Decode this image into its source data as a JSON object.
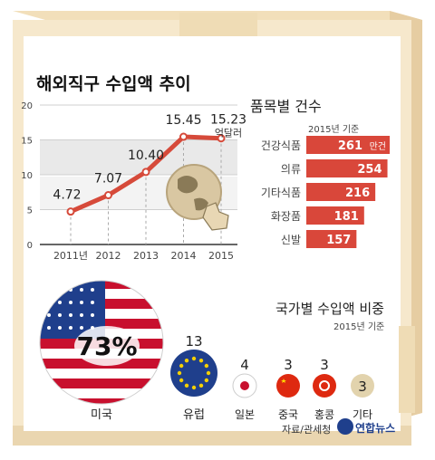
{
  "line_chart": {
    "title": "해외직구 수입액 추이",
    "unit_label": "억달러",
    "y_ticks": [
      "0",
      "5",
      "10",
      "15",
      "20"
    ],
    "x_labels": [
      "2011년",
      "2012",
      "2013",
      "2014",
      "2015"
    ],
    "value_labels": [
      "4.72",
      "7.07",
      "10.40",
      "15.45",
      "15.23"
    ]
  },
  "bar_chart": {
    "title": "품목별 건수",
    "note": "2015년 기준",
    "unit": "만건",
    "categories": [
      "건강식품",
      "의류",
      "기타식품",
      "화장품",
      "신발"
    ],
    "value_labels": [
      "261",
      "254",
      "216",
      "181",
      "157"
    ]
  },
  "share": {
    "title": "국가별 수입액 비중",
    "note": "2015년 기준",
    "items": [
      {
        "name": "미국",
        "value": "73%"
      },
      {
        "name": "유럽",
        "value": "13"
      },
      {
        "name": "일본",
        "value": "4"
      },
      {
        "name": "중국",
        "value": "3"
      },
      {
        "name": "홍콩",
        "value": "3"
      },
      {
        "name": "기타",
        "value": "3"
      }
    ]
  },
  "footer": {
    "source": "자료/관세청",
    "logo_text": "연합뉴스"
  },
  "chart_data": [
    {
      "type": "line",
      "title": "해외직구 수입액 추이",
      "ylabel": "억달러",
      "x": [
        "2011년",
        "2012",
        "2013",
        "2014",
        "2015"
      ],
      "values": [
        4.72,
        7.07,
        10.4,
        15.45,
        15.23
      ],
      "ylim": [
        0,
        20
      ],
      "y_ticks": [
        0,
        5,
        10,
        15,
        20
      ]
    },
    {
      "type": "bar",
      "title": "품목별 건수",
      "categories": [
        "건강식품",
        "의류",
        "기타식품",
        "화장품",
        "신발"
      ],
      "values": [
        261,
        254,
        216,
        181,
        157
      ],
      "unit": "만건"
    },
    {
      "type": "pie",
      "title": "국가별 수입액 비중",
      "categories": [
        "미국",
        "유럽",
        "일본",
        "중국",
        "홍콩",
        "기타"
      ],
      "values": [
        73,
        13,
        4,
        3,
        3,
        3
      ]
    }
  ],
  "colors": {
    "box": "#f6e8cc",
    "box_dark": "#e3cba0",
    "line": "#d64a3a",
    "bar": "#d9473a",
    "band": "#e9e9e9"
  }
}
